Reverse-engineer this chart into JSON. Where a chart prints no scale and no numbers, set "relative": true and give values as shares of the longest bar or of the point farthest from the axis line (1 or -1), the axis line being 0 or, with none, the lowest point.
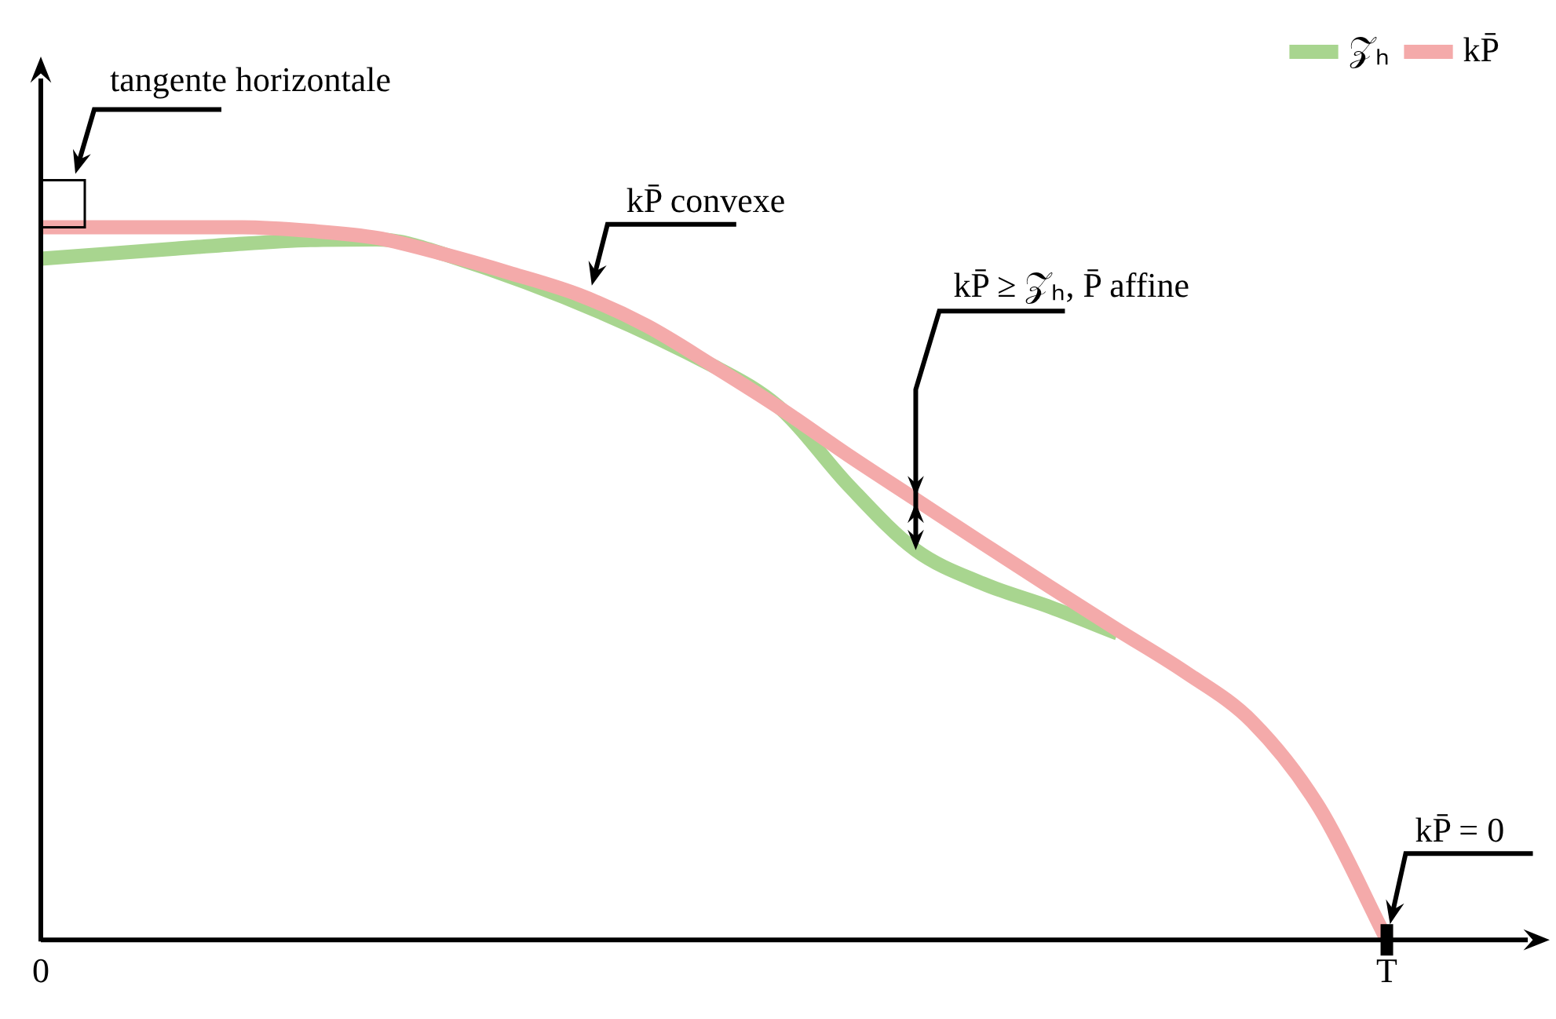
{
  "chart_data": {
    "type": "line",
    "relative": true,
    "categories": [
      "0",
      null,
      null,
      null,
      null,
      null,
      null,
      null,
      null,
      null,
      null,
      null,
      null,
      null,
      null,
      null,
      null,
      null,
      null,
      null,
      "T",
      null,
      null
    ],
    "legend": "top right",
    "marker": "none",
    "series": [
      {
        "name": "𝒵ₕ",
        "color": "#a8d58f",
        "values": [
          0.956,
          0.963,
          0.97,
          0.977,
          0.982,
          0.983,
          0.962,
          null,
          null,
          null,
          0.805,
          0.745,
          0.638,
          0.547,
          0.5,
          0.467,
          0.43,
          null,
          null,
          null,
          null,
          null,
          null
        ]
      },
      {
        "name": "kP̄",
        "color": "#f4aaaa",
        "values": [
          1,
          1,
          1,
          1,
          0.995,
          0.985,
          0.962,
          0.935,
          0.905,
          0.862,
          0.805,
          0.745,
          0.68,
          0.618,
          0.556,
          0.495,
          0.435,
          0.376,
          0.306,
          0.185,
          0,
          null,
          null
        ]
      }
    ],
    "annotations": [
      "tangente horizontale",
      "kP̄ convexe",
      "kP̄ ≥ 𝒵ₕ, P̄ affine",
      "kP̄ = 0"
    ]
  }
}
